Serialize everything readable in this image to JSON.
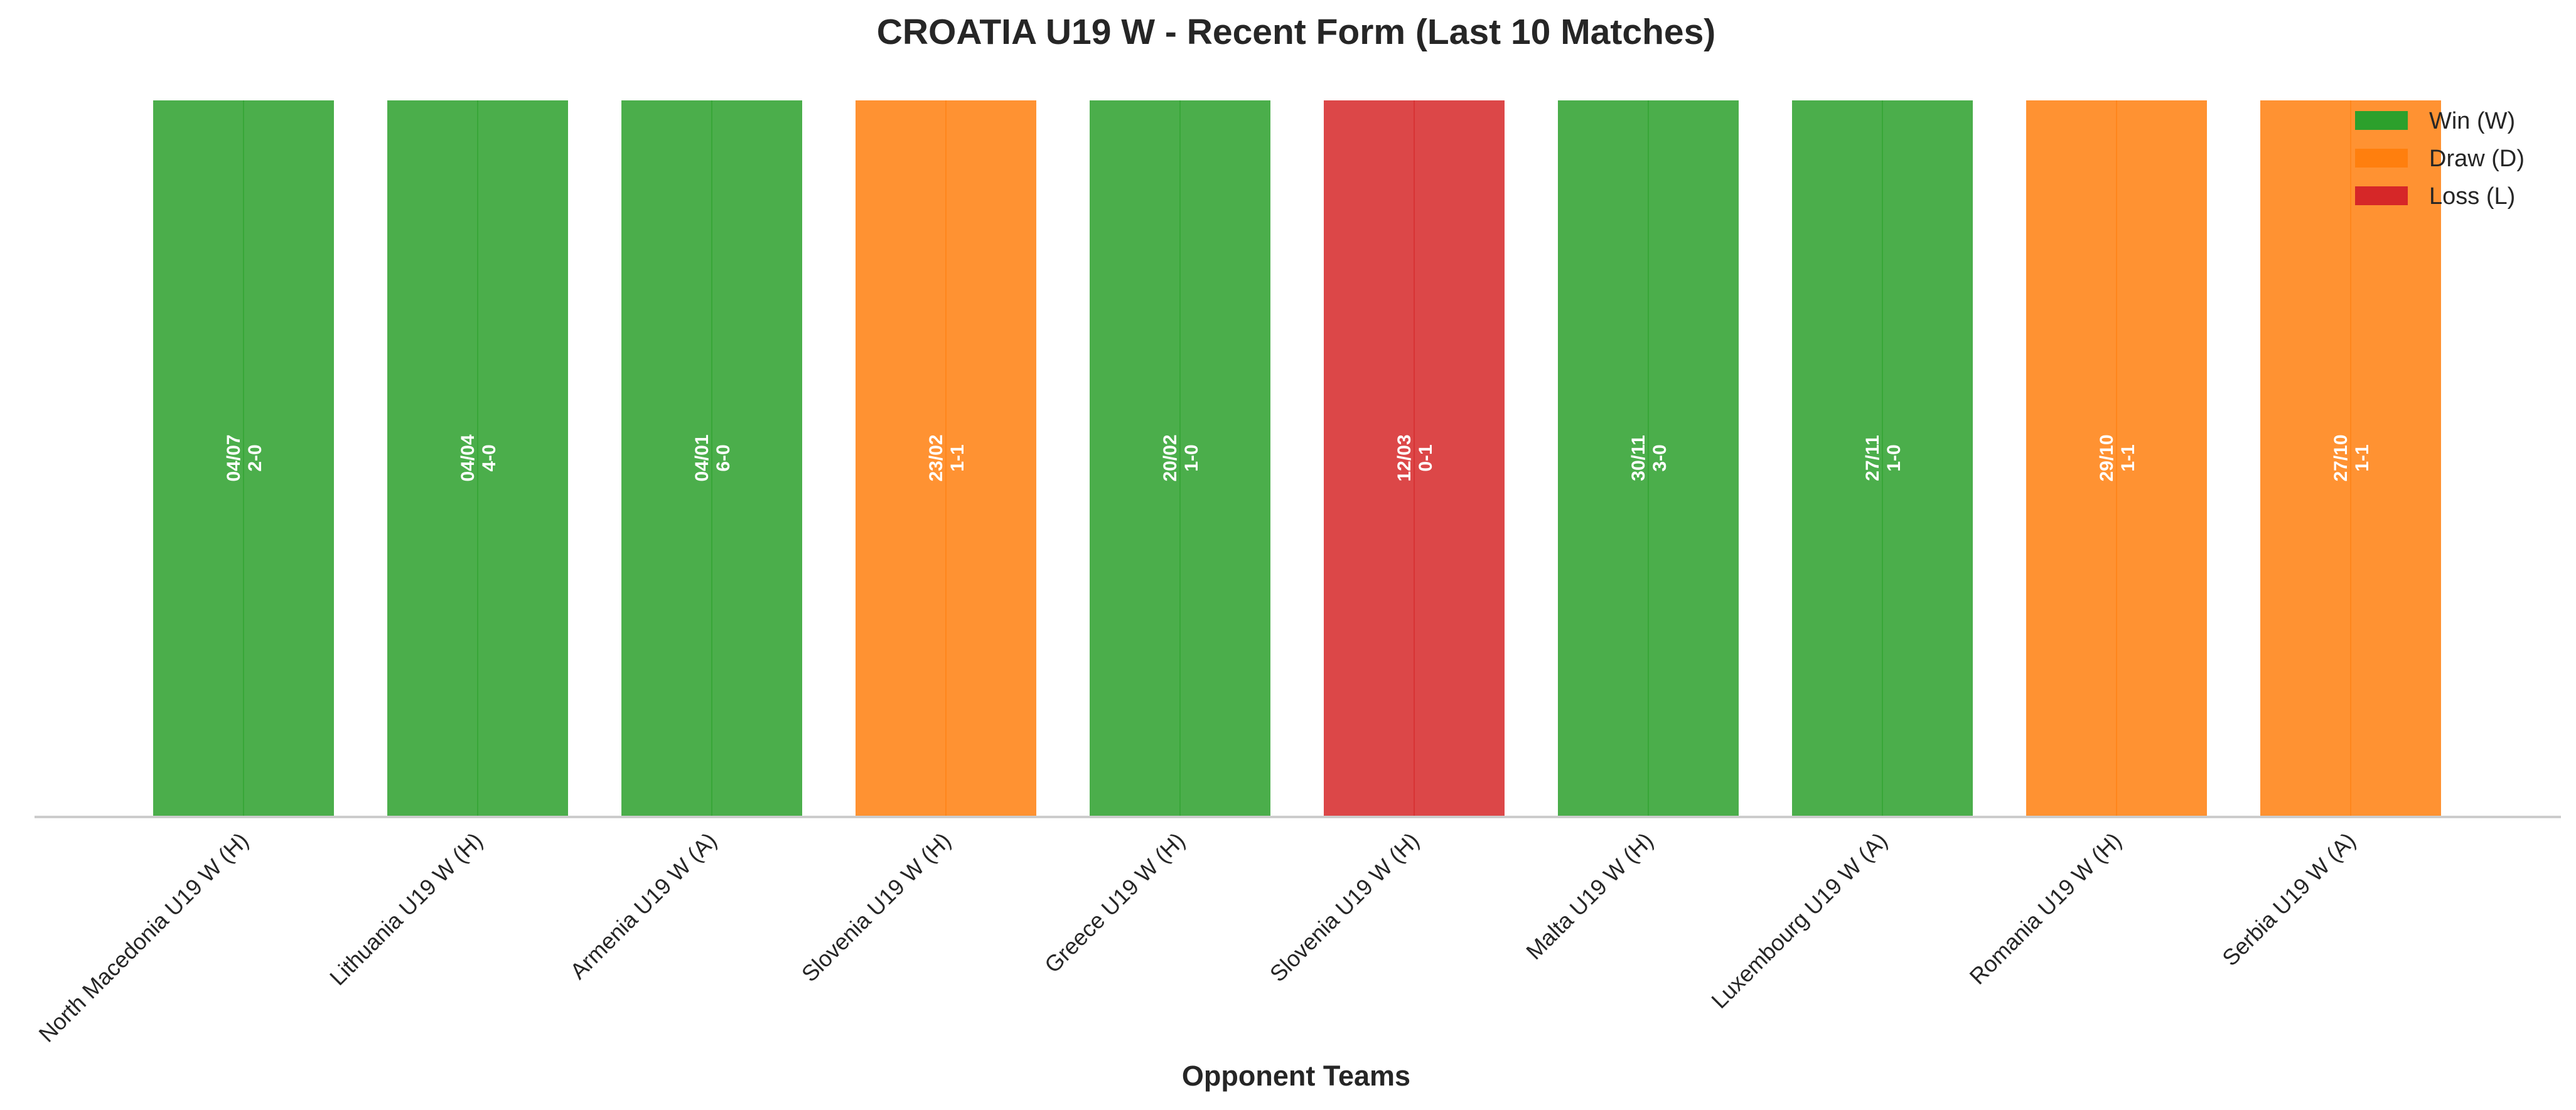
{
  "chart_data": {
    "type": "bar",
    "title": "CROATIA U19 W - Recent Form (Last 10 Matches)",
    "xlabel": "Opponent Teams",
    "ylabel": "",
    "ylim": [
      0,
      1
    ],
    "grid": false,
    "legend_position": "top-right",
    "categories": [
      "North Macedonia U19 W (H)",
      "Lithuania U19 W (H)",
      "Armenia U19 W (A)",
      "Slovenia U19 W (H)",
      "Greece U19 W (H)",
      "Slovenia U19 W (H)",
      "Malta U19 W (H)",
      "Luxembourg U19 W (A)",
      "Romania U19 W (H)",
      "Serbia U19 W (A)"
    ],
    "values": [
      1,
      1,
      1,
      1,
      1,
      1,
      1,
      1,
      1,
      1
    ],
    "results": [
      "W",
      "W",
      "W",
      "D",
      "W",
      "L",
      "W",
      "W",
      "D",
      "D"
    ],
    "dates": [
      "04/07",
      "04/04",
      "04/01",
      "23/02",
      "20/02",
      "12/03",
      "30/11",
      "27/11",
      "29/10",
      "27/10"
    ],
    "scores": [
      "2-0",
      "4-0",
      "6-0",
      "1-1",
      "1-0",
      "0-1",
      "3-0",
      "1-0",
      "1-1",
      "1-1"
    ],
    "legend": [
      {
        "key": "W",
        "label": "Win (W)",
        "color": "#2ca02c"
      },
      {
        "key": "D",
        "label": "Draw (D)",
        "color": "#ff7f0e"
      },
      {
        "key": "L",
        "label": "Loss (L)",
        "color": "#d62728"
      }
    ]
  }
}
